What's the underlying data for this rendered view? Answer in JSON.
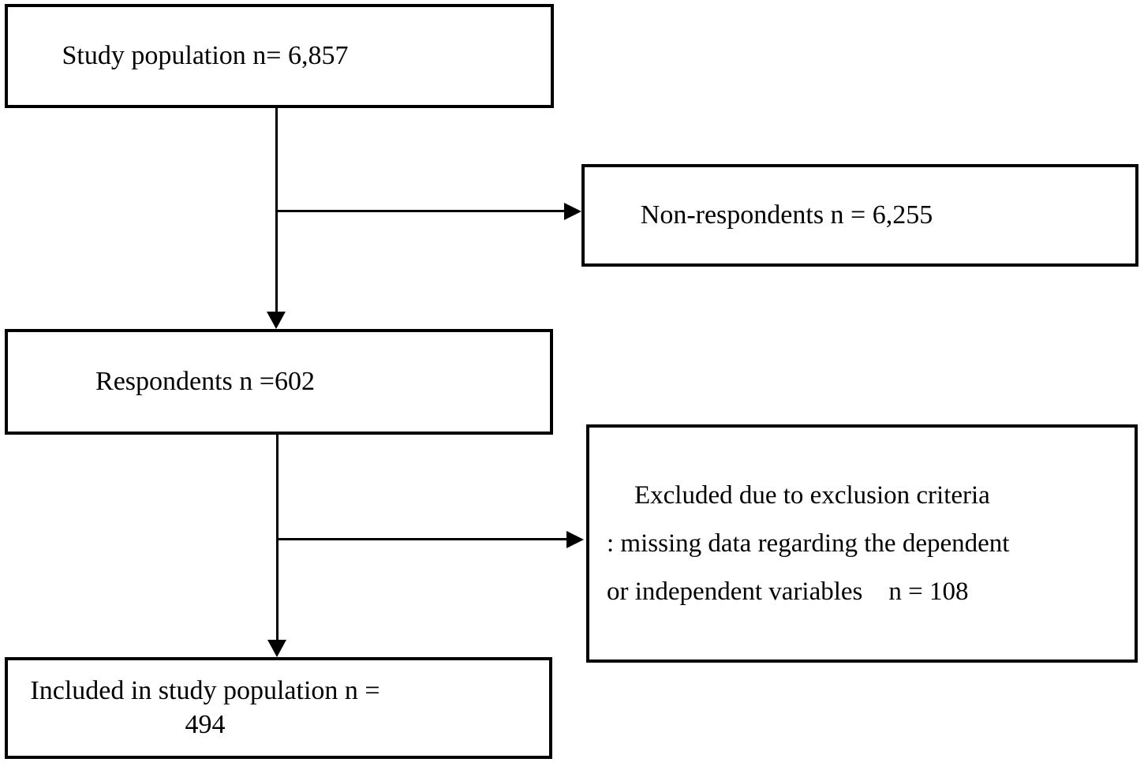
{
  "boxes": {
    "study_population": {
      "label": "Study population n= 6,857"
    },
    "non_respondents": {
      "label": "Non-respondents n = 6,255"
    },
    "respondents": {
      "label": "Respondents n =602"
    },
    "excluded": {
      "line1": "Excluded due to exclusion criteria",
      "line2": ": missing data regarding the dependent",
      "line3": "or independent variables    n = 108"
    },
    "included": {
      "label": "Included in study population n = 494"
    }
  },
  "colors": {
    "line": "#000000",
    "text": "#000000",
    "background": "#ffffff"
  }
}
